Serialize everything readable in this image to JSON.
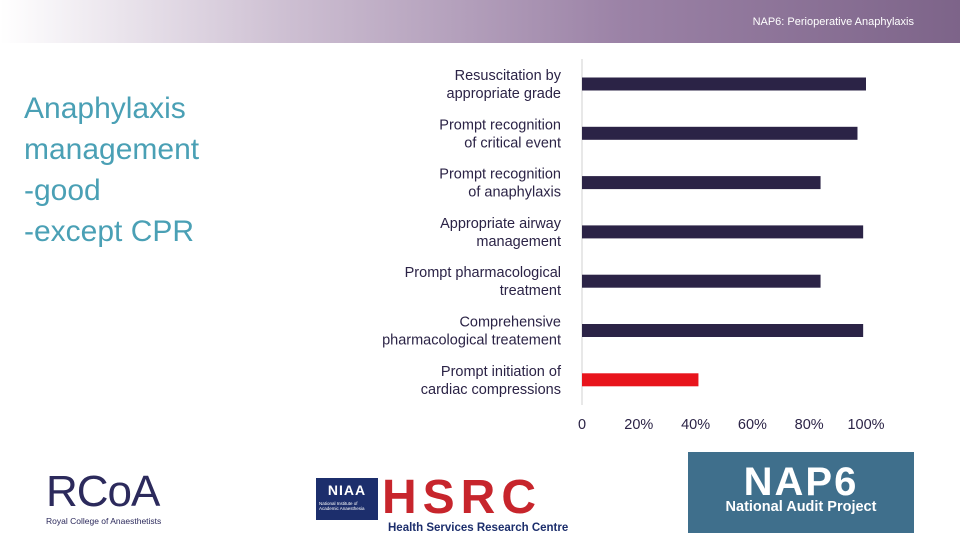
{
  "header": {
    "title": "NAP6: Perioperative Anaphylaxis"
  },
  "left_text": [
    "Anaphylaxis",
    "management",
    "-good",
    "-except CPR"
  ],
  "logos": {
    "rcoa": {
      "main": "RCoA",
      "sub": "Royal College of Anaesthetists"
    },
    "niaa": {
      "title": "NIAA",
      "sub": "National Institute of Academic Anaesthesia"
    },
    "hsrc": {
      "letters": "HSRC",
      "sub": "Health Services Research Centre"
    },
    "nap6": {
      "main": "NAP6",
      "sub": "National Audit Project"
    }
  },
  "chart_data": {
    "type": "bar",
    "orientation": "horizontal",
    "categories": [
      [
        "Resuscitation by",
        "appropriate grade"
      ],
      [
        "Prompt recognition",
        "of critical event"
      ],
      [
        "Prompt recognition",
        "of anaphylaxis"
      ],
      [
        "Appropriate airway",
        "management"
      ],
      [
        "Prompt pharmacological",
        "treatment"
      ],
      [
        "Comprehensive",
        "pharmacological treatement"
      ],
      [
        "Prompt initiation of",
        "cardiac compressions"
      ]
    ],
    "values": [
      100,
      97,
      84,
      99,
      84,
      99,
      41
    ],
    "colors": [
      "#2b2346",
      "#2b2346",
      "#2b2346",
      "#2b2346",
      "#2b2346",
      "#2b2346",
      "#e8141c"
    ],
    "xticks": [
      "0",
      "20%",
      "40%",
      "60%",
      "80%",
      "100%"
    ],
    "xlim": [
      0,
      100
    ],
    "grid": false
  }
}
